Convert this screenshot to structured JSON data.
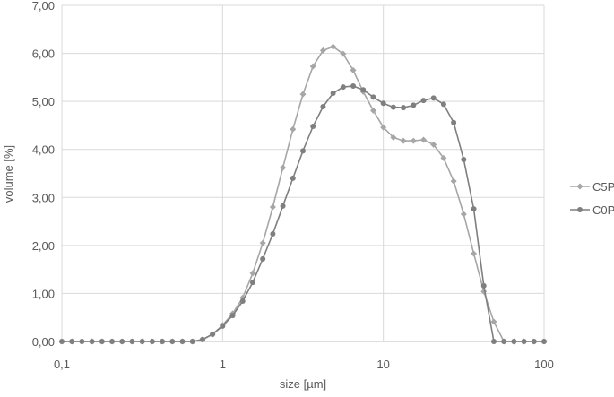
{
  "chart_data": {
    "type": "line",
    "title": "",
    "xlabel": "size [µm]",
    "ylabel": "volume [%]",
    "x_scale": "log",
    "xlim": [
      0.1,
      100
    ],
    "ylim": [
      0,
      7
    ],
    "x_ticks": [
      0.1,
      1,
      10,
      100
    ],
    "x_tick_labels": [
      "0,1",
      "1",
      "10",
      "100"
    ],
    "y_ticks": [
      0,
      1,
      2,
      3,
      4,
      5,
      6,
      7
    ],
    "y_tick_labels": [
      "0,00",
      "1,00",
      "2,00",
      "3,00",
      "4,00",
      "5,00",
      "6,00",
      "7,00"
    ],
    "grid": true,
    "legend_position": "right",
    "x_points_per_decade": 16,
    "series": [
      {
        "name": "C5P",
        "color": "#a6a6a6",
        "marker": "diamond",
        "values": [
          0,
          0,
          0,
          0,
          0,
          0,
          0,
          0,
          0,
          0,
          0,
          0,
          0,
          0,
          0.04,
          0.15,
          0.34,
          0.58,
          0.91,
          1.42,
          2.05,
          2.8,
          3.62,
          4.42,
          5.15,
          5.73,
          6.06,
          6.14,
          5.99,
          5.65,
          5.2,
          4.81,
          4.46,
          4.25,
          4.18,
          4.18,
          4.2,
          4.1,
          3.82,
          3.34,
          2.65,
          1.83,
          1.04,
          0.41,
          0,
          0,
          0,
          0,
          0
        ]
      },
      {
        "name": "C0P",
        "color": "#7f7f7f",
        "marker": "circle",
        "values": [
          0,
          0,
          0,
          0,
          0,
          0,
          0,
          0,
          0,
          0,
          0,
          0,
          0,
          0,
          0.04,
          0.15,
          0.32,
          0.54,
          0.84,
          1.23,
          1.72,
          2.24,
          2.82,
          3.4,
          3.97,
          4.48,
          4.89,
          5.17,
          5.3,
          5.32,
          5.24,
          5.09,
          4.96,
          4.88,
          4.87,
          4.92,
          5.02,
          5.07,
          4.94,
          4.56,
          3.79,
          2.76,
          1.16,
          0,
          0,
          0,
          0,
          0,
          0
        ]
      }
    ]
  }
}
